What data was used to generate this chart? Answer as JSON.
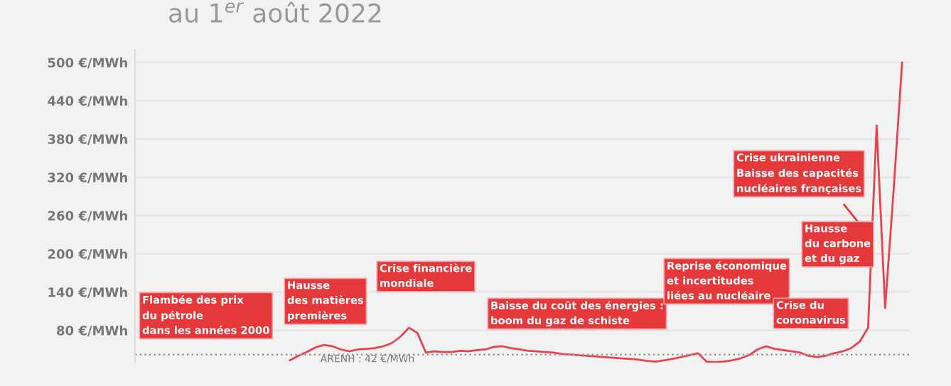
{
  "chart_data": {
    "type": "line",
    "title": "au 1$^{er}$ août 2022",
    "categories": [
      null,
      null,
      null,
      null,
      null,
      null,
      null,
      null,
      null,
      null,
      null,
      null,
      null,
      null,
      null,
      null,
      null,
      null,
      null,
      null,
      null,
      null,
      null,
      null,
      null,
      null,
      null,
      null,
      null,
      null,
      null,
      null,
      null,
      null,
      null,
      null,
      null,
      null,
      null,
      null,
      null,
      null,
      null,
      null,
      null,
      null,
      null,
      null,
      null,
      null,
      null,
      null,
      null,
      null,
      null,
      null,
      null,
      null,
      null,
      null,
      null,
      null,
      null,
      null,
      null,
      null,
      null,
      null,
      null,
      null,
      null,
      null,
      null,
      null,
      null,
      null,
      null,
      null,
      null,
      null,
      null,
      null,
      null,
      null,
      null,
      null,
      null,
      null,
      null,
      null,
      null
    ],
    "series": [
      {
        "color": "#e8414f",
        "values": [
          null,
          null,
          null,
          null,
          null,
          null,
          null,
          null,
          null,
          null,
          null,
          null,
          null,
          null,
          null,
          null,
          null,
          null,
          33,
          40,
          46,
          53,
          57,
          55,
          50,
          47,
          50,
          51,
          52,
          55,
          60,
          70,
          84,
          76,
          45,
          47,
          46,
          46,
          48,
          47,
          49,
          50,
          54,
          55,
          52,
          50,
          48,
          47,
          46,
          45,
          43,
          42,
          41,
          40,
          39,
          38,
          37,
          36,
          35,
          34,
          32,
          31,
          33,
          35,
          38,
          41,
          44,
          31,
          30,
          31,
          33,
          36,
          41,
          50,
          55,
          51,
          49,
          47,
          45,
          40,
          38,
          40,
          44,
          47,
          52,
          62,
          84,
          401,
          115,
          300,
          500
        ]
      }
    ],
    "ylim": [
      29,
      520
    ],
    "yticks": [
      {
        "value": 80,
        "label": "80 €/MWh"
      },
      {
        "value": 140,
        "label": "140 €/MWh"
      },
      {
        "value": 200,
        "label": "200 €/MWh"
      },
      {
        "value": 260,
        "label": "260 €/MWh"
      },
      {
        "value": 320,
        "label": "320 €/MWh"
      },
      {
        "value": 380,
        "label": "380 €/MWh"
      },
      {
        "value": 440,
        "label": "440 €/MWh"
      },
      {
        "value": 500,
        "label": "500 €/MWh"
      }
    ],
    "tick_labels": "y",
    "grid": "y",
    "ref_lines": [
      {
        "axis": "y",
        "value": 42,
        "label": "ARENH : 42 €/MWh",
        "color": "#999999",
        "line_style": "dotted"
      }
    ],
    "annotations": [
      "Flambée des prix\ndu pétrole\ndans les années 2000",
      "Hausse\ndes matières\npremières",
      "Crise financière\nmondiale",
      "Baisse du coût des énergies :\nboom du gaz de schiste",
      "Reprise économique\net incertitudes\nliées au nucléaire",
      "Crise du\ncoronavirus",
      "Hausse\ndu carbone\net du gaz",
      "Crise ukrainienne\nBaisse des capacités\nnucléaires françaises"
    ]
  }
}
